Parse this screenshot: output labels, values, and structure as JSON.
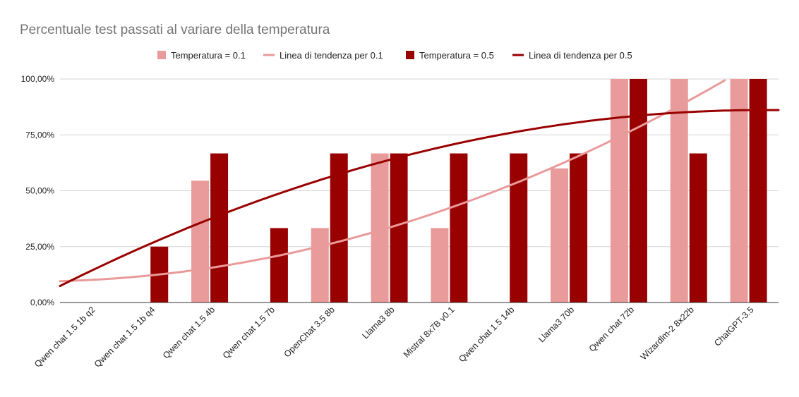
{
  "chart_data": {
    "type": "bar",
    "title": "Percentuale test passati al variare della temperatura",
    "categories": [
      "Qwen chat 1.5 1b q2",
      "Qwen chat 1.5 1b q4",
      "Qwen chat 1.5 4b",
      "Qwen chat 1.5 7b",
      "OpenChat 3.5 8b",
      "Llama3 8b",
      "Mistral 8x7B v0.1",
      "Qwen chat 1.5 14b",
      "Llama3 70b",
      "Qwen chat 72b",
      "Wizardlm-2 8x22b",
      "ChatGPT-3.5"
    ],
    "series": [
      {
        "name": "Temperatura = 0.1",
        "color": "#e99a9a",
        "values": [
          0,
          0,
          54.5,
          0,
          33.3,
          66.7,
          33.3,
          0,
          60,
          100,
          100,
          100
        ]
      },
      {
        "name": "Temperatura = 0.5",
        "color": "#990000",
        "values": [
          0,
          25,
          66.7,
          33.3,
          66.7,
          66.7,
          66.7,
          66.7,
          66.7,
          100,
          66.7,
          100
        ]
      }
    ],
    "trendlines": [
      {
        "name": "Linea di tendenza per 0.1",
        "color": "#e99a9a"
      },
      {
        "name": "Linea di tendenza per 0.5",
        "color": "#990000"
      }
    ],
    "ylim": [
      0,
      100
    ],
    "yticks": [
      "0,00%",
      "25,00%",
      "50,00%",
      "75,00%",
      "100,00%"
    ],
    "ytick_values": [
      0,
      25,
      50,
      75,
      100
    ],
    "grid": true,
    "legend_position": "top"
  }
}
